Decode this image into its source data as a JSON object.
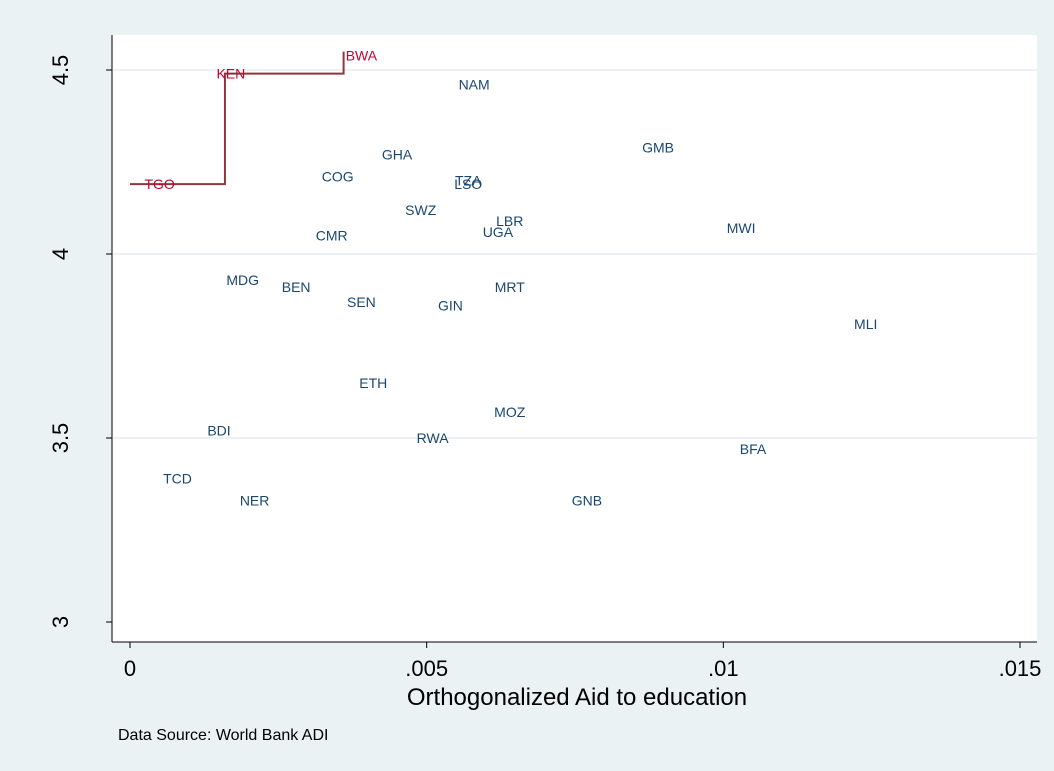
{
  "chart_data": {
    "type": "scatter",
    "xlabel": "Orthogonalized Aid to education",
    "ylabel": "",
    "note": "Data Source: World Bank ADI",
    "xlim": [
      0,
      0.015
    ],
    "ylim": [
      3,
      4.5
    ],
    "xticks": [
      0,
      0.005,
      0.01,
      0.015
    ],
    "xtick_labels": [
      "0",
      ".005",
      ".01",
      ".015"
    ],
    "yticks": [
      3,
      3.5,
      4,
      4.5
    ],
    "ytick_labels": [
      "3",
      "3.5",
      "4",
      "4.5"
    ],
    "grid": "horizontal",
    "colors": {
      "background": "#eaf2f3",
      "plot_bg": "#ffffff",
      "point_label": "#1a476f",
      "highlight": "#c10534",
      "step_line": "#90353b",
      "grid": "#eaf2f3"
    },
    "points": [
      {
        "label": "BWA",
        "x": 0.0039,
        "y": 4.54,
        "highlight": true
      },
      {
        "label": "KEN",
        "x": 0.0017,
        "y": 4.49,
        "highlight": true
      },
      {
        "label": "TGO",
        "x": 0.0005,
        "y": 4.19,
        "highlight": true
      },
      {
        "label": "NAM",
        "x": 0.0058,
        "y": 4.46
      },
      {
        "label": "GHA",
        "x": 0.0045,
        "y": 4.27
      },
      {
        "label": "COG",
        "x": 0.0035,
        "y": 4.21
      },
      {
        "label": "GMB",
        "x": 0.0089,
        "y": 4.29
      },
      {
        "label": "TZA",
        "x": 0.0057,
        "y": 4.2
      },
      {
        "label": "LSO",
        "x": 0.0057,
        "y": 4.19
      },
      {
        "label": "SWZ",
        "x": 0.0049,
        "y": 4.12
      },
      {
        "label": "LBR",
        "x": 0.0064,
        "y": 4.09
      },
      {
        "label": "UGA",
        "x": 0.0062,
        "y": 4.06
      },
      {
        "label": "CMR",
        "x": 0.0034,
        "y": 4.05
      },
      {
        "label": "MWI",
        "x": 0.0103,
        "y": 4.07
      },
      {
        "label": "MDG",
        "x": 0.0019,
        "y": 3.93
      },
      {
        "label": "BEN",
        "x": 0.0028,
        "y": 3.91
      },
      {
        "label": "MRT",
        "x": 0.0064,
        "y": 3.91
      },
      {
        "label": "SEN",
        "x": 0.0039,
        "y": 3.87
      },
      {
        "label": "GIN",
        "x": 0.0054,
        "y": 3.86
      },
      {
        "label": "MLI",
        "x": 0.0124,
        "y": 3.81
      },
      {
        "label": "ETH",
        "x": 0.0041,
        "y": 3.65
      },
      {
        "label": "MOZ",
        "x": 0.0064,
        "y": 3.57
      },
      {
        "label": "BDI",
        "x": 0.0015,
        "y": 3.52
      },
      {
        "label": "RWA",
        "x": 0.0051,
        "y": 3.5
      },
      {
        "label": "BFA",
        "x": 0.0105,
        "y": 3.47
      },
      {
        "label": "TCD",
        "x": 0.0008,
        "y": 3.39
      },
      {
        "label": "NER",
        "x": 0.0021,
        "y": 3.33
      },
      {
        "label": "GNB",
        "x": 0.0077,
        "y": 3.33
      }
    ],
    "step_line": [
      {
        "x": 0.0,
        "y": 4.19
      },
      {
        "x": 0.0016,
        "y": 4.19
      },
      {
        "x": 0.0016,
        "y": 4.49
      },
      {
        "x": 0.0036,
        "y": 4.49
      },
      {
        "x": 0.0036,
        "y": 4.55
      }
    ]
  }
}
